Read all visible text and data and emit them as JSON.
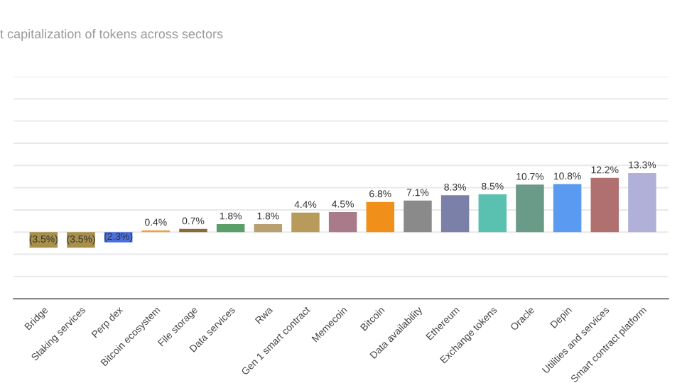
{
  "chart_data": {
    "type": "bar",
    "title": "t capitalization of tokens across sectors",
    "categories": [
      "Bridge",
      "Staking services",
      "Perp dex",
      "Bitcoin ecosystem",
      "File storage",
      "Data services",
      "Rwa",
      "Gen 1 smart contract",
      "Memecoin",
      "Bitcoin",
      "Data availability",
      "Ethereum",
      "Exchange tokens",
      "Oracle",
      "Depin",
      "Utilities and services",
      "Smart contract platform"
    ],
    "values": [
      -3.5,
      -3.5,
      -2.3,
      0.4,
      0.7,
      1.8,
      1.8,
      4.4,
      4.5,
      6.8,
      7.1,
      8.3,
      8.5,
      10.7,
      10.8,
      12.2,
      13.3
    ],
    "value_labels": [
      "(3.5%)",
      "(3.5%)",
      "(2.3%)",
      "0.4%",
      "0.7%",
      "1.8%",
      "1.8%",
      "4.4%",
      "4.5%",
      "6.8%",
      "7.1%",
      "8.3%",
      "8.5%",
      "10.7%",
      "10.8%",
      "12.2%",
      "13.3%"
    ],
    "colors": [
      "#a8904a",
      "#a8904a",
      "#4a6fe0",
      "#f0a040",
      "#8b6a3a",
      "#5a9e6a",
      "#b8a070",
      "#b89a5a",
      "#a87a8a",
      "#f0901a",
      "#8a8a8a",
      "#7a80a8",
      "#5ac0b0",
      "#6a9a88",
      "#5a9af0",
      "#b07070",
      "#b0b0d8"
    ],
    "ylim": [
      -15,
      35
    ],
    "yticks": [
      {
        "value": -15,
        "label": null
      },
      {
        "value": -10,
        "label": null
      },
      {
        "value": -5,
        "label": null
      },
      {
        "value": 0,
        "label": null
      },
      {
        "value": 5,
        "label": null
      },
      {
        "value": 10,
        "label": null
      },
      {
        "value": 15,
        "label": null
      },
      {
        "value": 20,
        "label": null
      },
      {
        "value": 25,
        "label": null
      },
      {
        "value": 30,
        "label": null
      },
      {
        "value": 35,
        "label": null
      }
    ],
    "grid": "y",
    "tick_labels": "x"
  }
}
